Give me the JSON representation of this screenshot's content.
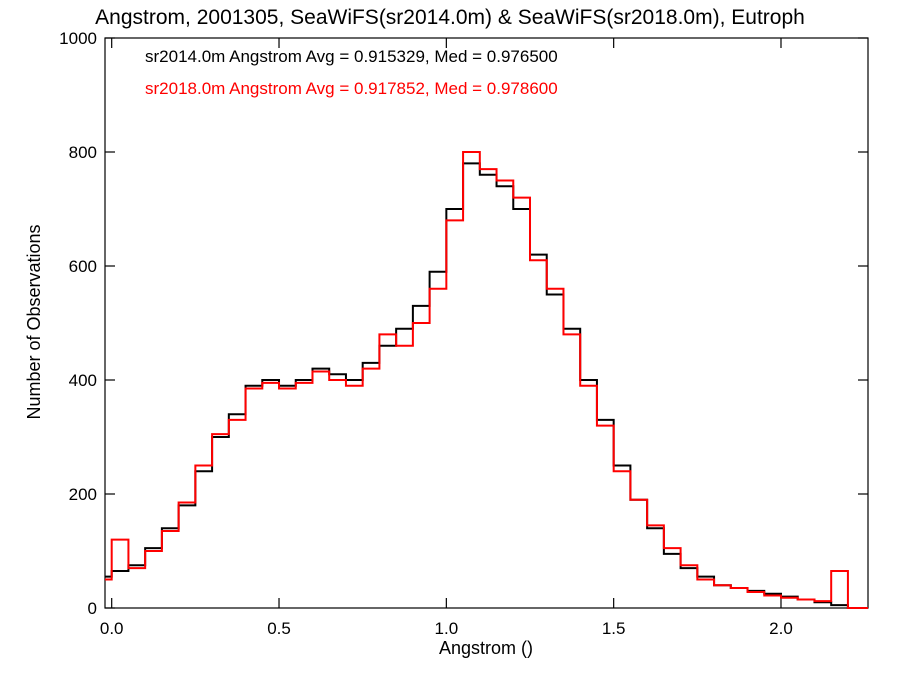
{
  "chart_data": {
    "type": "line",
    "step": true,
    "title": "Angstrom, 2001305, SeaWiFS(sr2014.0m) & SeaWiFS(sr2018.0m), Eutroph",
    "xlabel": "Angstrom ()",
    "ylabel": "Number of Observations",
    "xlim": [
      -0.02,
      2.26
    ],
    "ylim": [
      0,
      1000
    ],
    "x_ticks": [
      0.0,
      0.5,
      1.0,
      1.5,
      2.0
    ],
    "x_tick_labels": [
      "0.0",
      "0.5",
      "1.0",
      "1.5",
      "2.0"
    ],
    "y_ticks": [
      0,
      200,
      400,
      600,
      800,
      1000
    ],
    "y_tick_labels": [
      "0",
      "200",
      "400",
      "600",
      "800",
      "1000"
    ],
    "grid": false,
    "legend_position": "top-left",
    "series": [
      {
        "name": "sr2014.0m",
        "color": "#000000",
        "legend": "sr2014.0m Angstrom Avg = 0.915329, Med = 0.976500",
        "x": [
          -0.02,
          0.0,
          0.05,
          0.1,
          0.15,
          0.2,
          0.25,
          0.3,
          0.35,
          0.4,
          0.45,
          0.5,
          0.55,
          0.6,
          0.65,
          0.7,
          0.75,
          0.8,
          0.85,
          0.9,
          0.95,
          1.0,
          1.05,
          1.1,
          1.15,
          1.2,
          1.25,
          1.3,
          1.35,
          1.4,
          1.45,
          1.5,
          1.55,
          1.6,
          1.65,
          1.7,
          1.75,
          1.8,
          1.85,
          1.9,
          1.95,
          2.0,
          2.05,
          2.1,
          2.15,
          2.2,
          2.26
        ],
        "values": [
          55,
          65,
          75,
          105,
          140,
          180,
          240,
          300,
          340,
          390,
          400,
          390,
          400,
          420,
          410,
          400,
          430,
          460,
          490,
          530,
          590,
          700,
          780,
          760,
          740,
          700,
          620,
          550,
          490,
          400,
          330,
          250,
          190,
          140,
          95,
          70,
          55,
          40,
          35,
          30,
          25,
          20,
          15,
          10,
          5,
          0,
          0
        ]
      },
      {
        "name": "sr2018.0m",
        "color": "#ff0000",
        "legend": "sr2018.0m Angstrom Avg = 0.917852, Med = 0.978600",
        "x": [
          -0.02,
          0.0,
          0.05,
          0.1,
          0.15,
          0.2,
          0.25,
          0.3,
          0.35,
          0.4,
          0.45,
          0.5,
          0.55,
          0.6,
          0.65,
          0.7,
          0.75,
          0.8,
          0.85,
          0.9,
          0.95,
          1.0,
          1.05,
          1.1,
          1.15,
          1.2,
          1.25,
          1.3,
          1.35,
          1.4,
          1.45,
          1.5,
          1.55,
          1.6,
          1.65,
          1.7,
          1.75,
          1.8,
          1.85,
          1.9,
          1.95,
          2.0,
          2.05,
          2.1,
          2.15,
          2.2,
          2.26
        ],
        "values": [
          50,
          120,
          70,
          100,
          135,
          185,
          250,
          305,
          330,
          385,
          395,
          385,
          395,
          415,
          400,
          390,
          420,
          480,
          460,
          500,
          560,
          680,
          800,
          770,
          750,
          720,
          610,
          560,
          480,
          390,
          320,
          240,
          190,
          145,
          105,
          75,
          50,
          40,
          35,
          28,
          22,
          18,
          15,
          12,
          65,
          0,
          0
        ]
      }
    ]
  }
}
